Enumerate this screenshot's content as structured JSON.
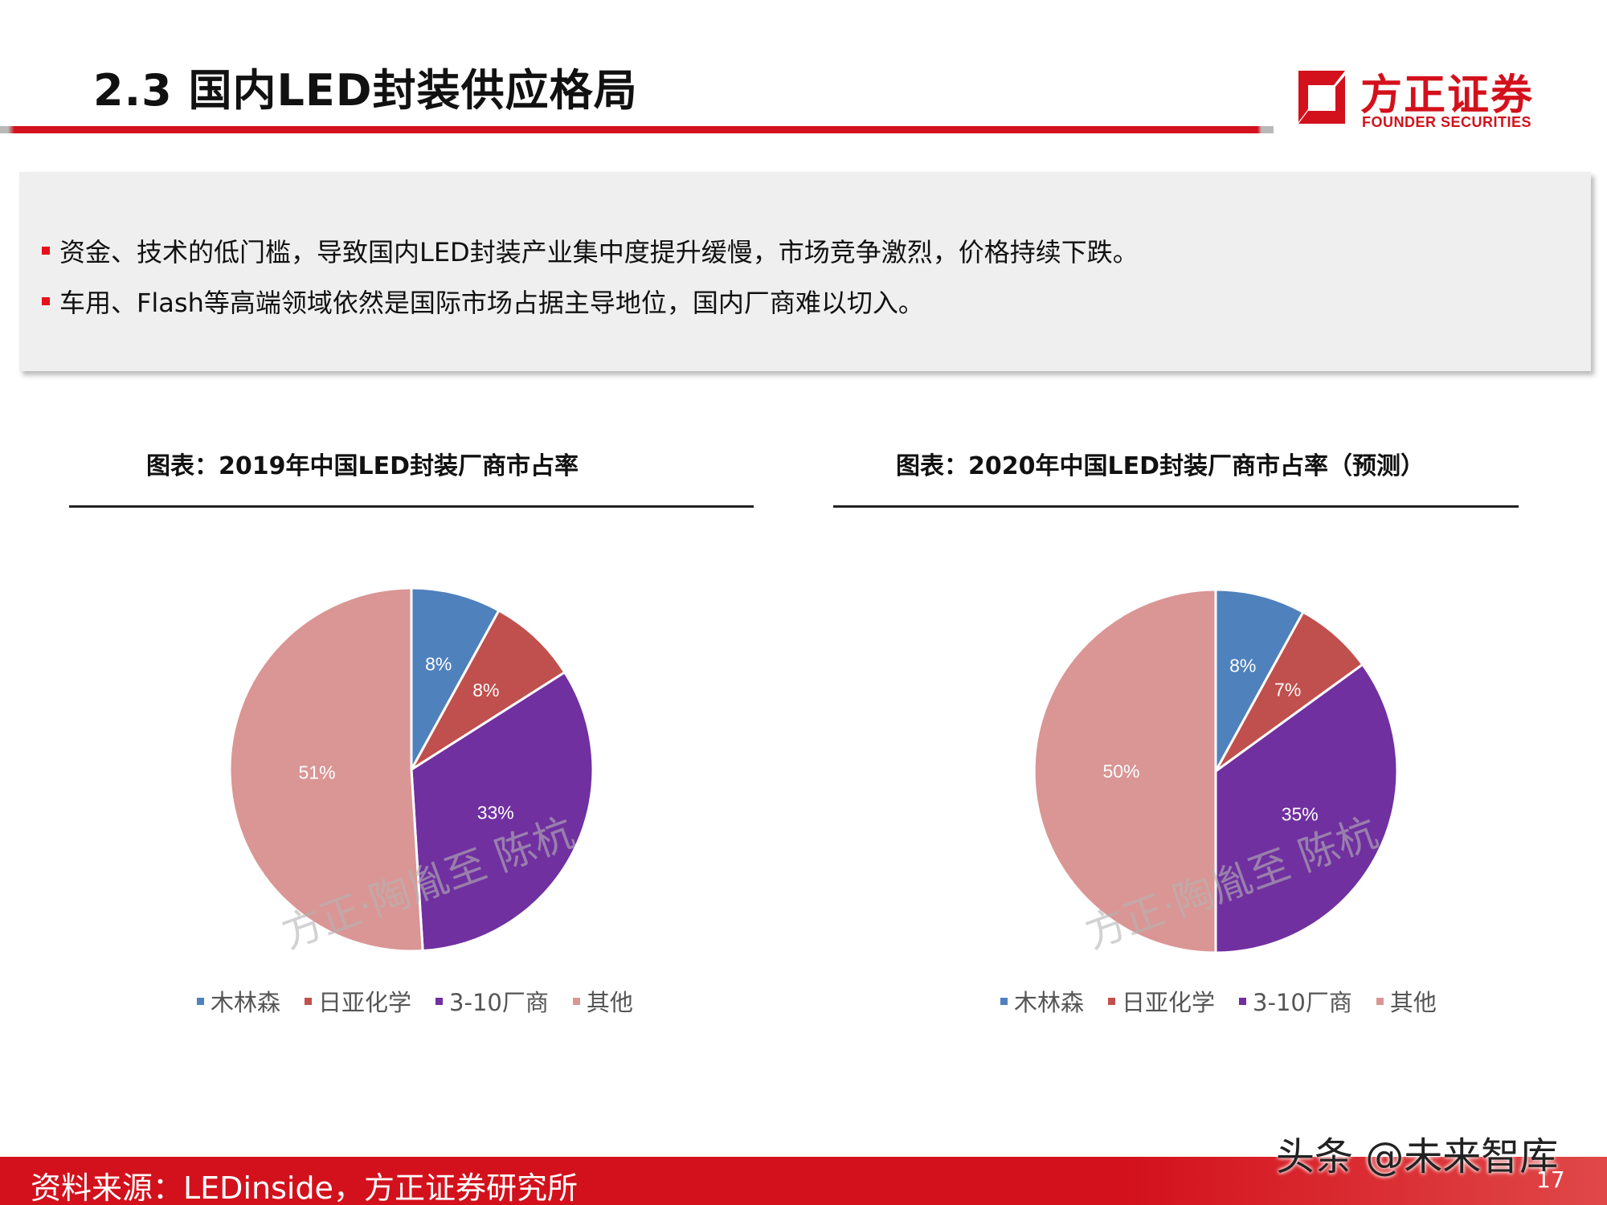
{
  "header": {
    "title": "2.3 国内LED封装供应格局",
    "logo_cn": "方正证券",
    "logo_en": "FOUNDER SECURITIES"
  },
  "summary": {
    "bullets": [
      "资金、技术的低门槛，导致国内LED封装产业集中度提升缓慢，市场竞争激烈，价格持续下跌。",
      "车用、Flash等高端领域依然是国际市场占据主导地位，国内厂商难以切入。"
    ]
  },
  "legend": {
    "items": [
      "木林森",
      "日亚化学",
      "3-10厂商",
      "其他"
    ]
  },
  "watermark": "方正·陶胤至 陈杭",
  "footer": {
    "source": "资料来源：LEDinside，方正证券研究所",
    "brand": "头条 @未来智库",
    "page": "17"
  },
  "colors": {
    "brand_red": "#d3111c",
    "series": [
      "#4f81bd",
      "#c0504d",
      "#7030a0",
      "#d99694"
    ]
  },
  "chart_data": [
    {
      "type": "pie",
      "title": "图表：2019年中国LED封装厂商市占率",
      "categories": [
        "木林森",
        "日亚化学",
        "3-10厂商",
        "其他"
      ],
      "values": [
        8,
        8,
        33,
        51
      ],
      "labels": [
        "8%",
        "8%",
        "33%",
        "51%"
      ],
      "legend": "bottom"
    },
    {
      "type": "pie",
      "title": "图表：2020年中国LED封装厂商市占率（预测）",
      "categories": [
        "木林森",
        "日亚化学",
        "3-10厂商",
        "其他"
      ],
      "values": [
        8,
        7,
        35,
        50
      ],
      "labels": [
        "8%",
        "7%",
        "35%",
        "50%"
      ],
      "legend": "bottom"
    }
  ]
}
